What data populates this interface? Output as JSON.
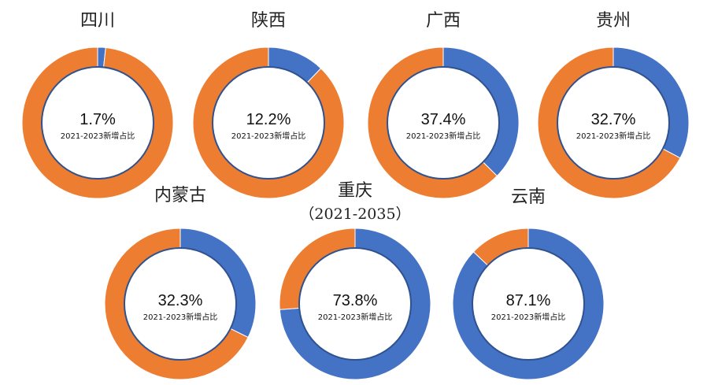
{
  "chart_data": [
    {
      "type": "pie",
      "title": "四川",
      "subtitle": "",
      "value_label": "1.7%",
      "caption": "2021-2023新增占比",
      "values": [
        1.7,
        98.3
      ]
    },
    {
      "type": "pie",
      "title": "陕西",
      "subtitle": "",
      "value_label": "12.2%",
      "caption": "2021-2023新增占比",
      "values": [
        12.2,
        87.8
      ]
    },
    {
      "type": "pie",
      "title": "广西",
      "subtitle": "",
      "value_label": "37.4%",
      "caption": "2021-2023新增占比",
      "values": [
        37.4,
        62.6
      ]
    },
    {
      "type": "pie",
      "title": "贵州",
      "subtitle": "",
      "value_label": "32.7%",
      "caption": "2021-2023新增占比",
      "values": [
        32.7,
        67.3
      ]
    },
    {
      "type": "pie",
      "title": "内蒙古",
      "subtitle": "",
      "value_label": "32.3%",
      "caption": "2021-2023新增占比",
      "values": [
        32.3,
        67.7
      ]
    },
    {
      "type": "pie",
      "title": "重庆",
      "subtitle": "（2021-2035）",
      "value_label": "73.8%",
      "caption": "2021-2023新增占比",
      "values": [
        73.8,
        26.2
      ]
    },
    {
      "type": "pie",
      "title": "云南",
      "subtitle": "",
      "value_label": "87.1%",
      "caption": "2021-2023新增占比",
      "values": [
        87.1,
        12.9
      ]
    }
  ],
  "colors": {
    "share": "#4472C4",
    "remainder": "#ED7D31",
    "inner_outline": "#2F528F",
    "background": "#FFFFFF"
  }
}
